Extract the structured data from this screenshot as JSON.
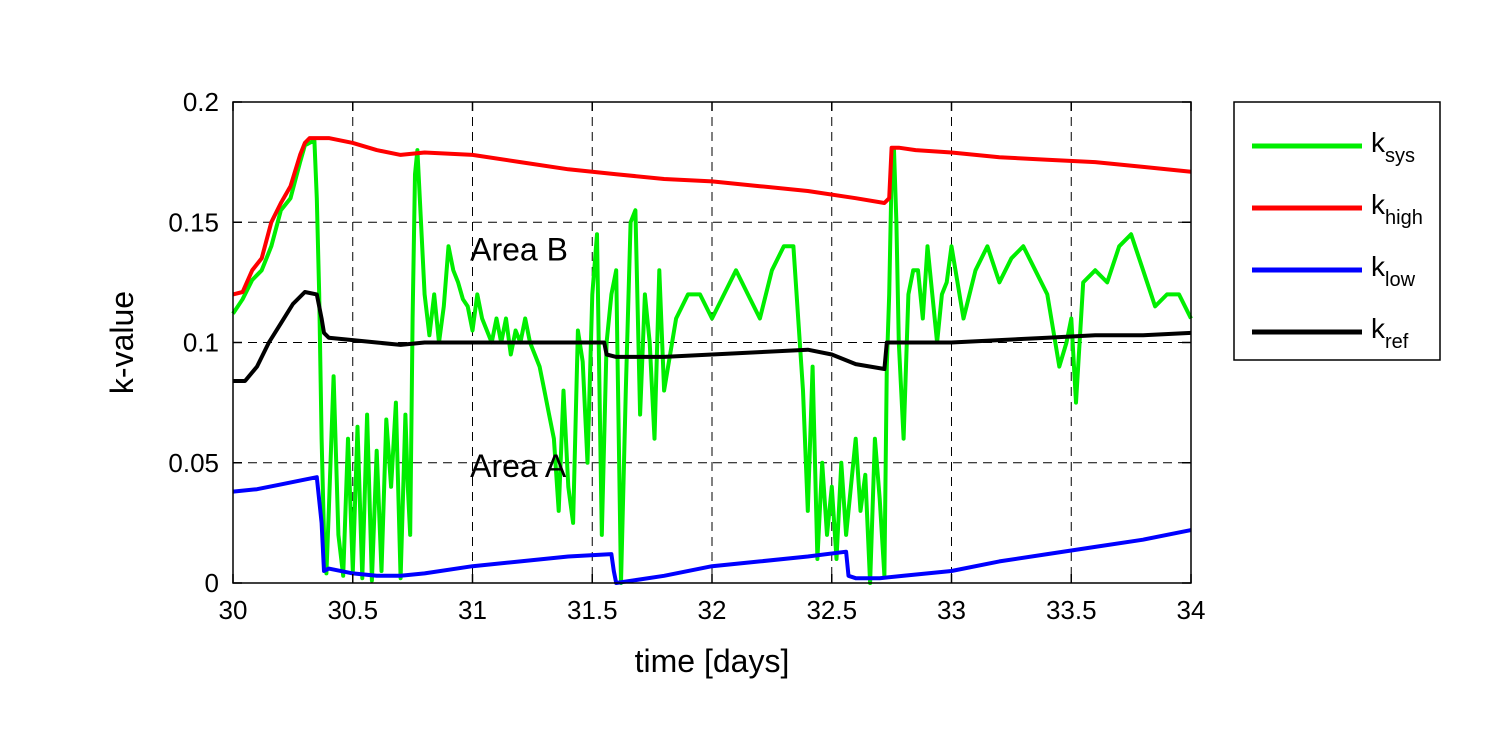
{
  "chart_data": {
    "type": "line",
    "title": "",
    "xlabel": "time [days]",
    "ylabel": "k-value",
    "xlim": [
      30,
      34
    ],
    "ylim": [
      0,
      0.2
    ],
    "xticks": [
      30,
      30.5,
      31,
      31.5,
      32,
      32.5,
      33,
      33.5,
      34
    ],
    "xtick_labels": [
      "30",
      "30.5",
      "31",
      "31.5",
      "32",
      "32.5",
      "33",
      "33.5",
      "34"
    ],
    "yticks": [
      0,
      0.05,
      0.1,
      0.15,
      0.2
    ],
    "ytick_labels": [
      "0",
      "0.05",
      "0.1",
      "0.15",
      "0.2"
    ],
    "grid": true,
    "legend_position": "outside-right",
    "annotations": [
      {
        "text": "Area B",
        "x": 30.99,
        "y": 0.139
      },
      {
        "text": "Area A",
        "x": 30.99,
        "y": 0.049
      }
    ],
    "series": [
      {
        "name": "k",
        "sub": "sys",
        "color": "#00ee00",
        "x": [
          30.0,
          30.04,
          30.08,
          30.12,
          30.16,
          30.2,
          30.24,
          30.28,
          30.3,
          30.32,
          30.34,
          30.35,
          30.36,
          30.37,
          30.38,
          30.39,
          30.4,
          30.42,
          30.44,
          30.46,
          30.48,
          30.5,
          30.52,
          30.54,
          30.56,
          30.58,
          30.6,
          30.62,
          30.64,
          30.66,
          30.68,
          30.7,
          30.72,
          30.73,
          30.74,
          30.75,
          30.76,
          30.77,
          30.78,
          30.8,
          30.82,
          30.84,
          30.86,
          30.88,
          30.9,
          30.92,
          30.94,
          30.96,
          30.98,
          31.0,
          31.02,
          31.04,
          31.06,
          31.08,
          31.1,
          31.12,
          31.14,
          31.16,
          31.18,
          31.2,
          31.22,
          31.24,
          31.26,
          31.28,
          31.3,
          31.32,
          31.34,
          31.36,
          31.38,
          31.4,
          31.42,
          31.44,
          31.46,
          31.48,
          31.5,
          31.52,
          31.54,
          31.56,
          31.58,
          31.6,
          31.62,
          31.64,
          31.66,
          31.68,
          31.7,
          31.72,
          31.74,
          31.76,
          31.78,
          31.8,
          31.85,
          31.9,
          31.95,
          32.0,
          32.05,
          32.1,
          32.15,
          32.2,
          32.25,
          32.3,
          32.34,
          32.36,
          32.38,
          32.4,
          32.42,
          32.44,
          32.46,
          32.48,
          32.5,
          32.52,
          32.54,
          32.56,
          32.58,
          32.6,
          32.62,
          32.64,
          32.66,
          32.68,
          32.7,
          32.72,
          32.73,
          32.74,
          32.75,
          32.76,
          32.77,
          32.78,
          32.8,
          32.82,
          32.84,
          32.86,
          32.88,
          32.9,
          32.92,
          32.94,
          32.96,
          32.98,
          33.0,
          33.05,
          33.1,
          33.15,
          33.2,
          33.25,
          33.3,
          33.35,
          33.4,
          33.45,
          33.48,
          33.5,
          33.52,
          33.55,
          33.6,
          33.65,
          33.7,
          33.75,
          33.8,
          33.85,
          33.9,
          33.95,
          34.0
        ],
        "y": [
          0.112,
          0.118,
          0.126,
          0.13,
          0.14,
          0.155,
          0.16,
          0.175,
          0.182,
          0.183,
          0.184,
          0.16,
          0.12,
          0.06,
          0.02,
          0.004,
          0.03,
          0.086,
          0.02,
          0.003,
          0.06,
          0.005,
          0.065,
          0.002,
          0.07,
          0.001,
          0.055,
          0.005,
          0.068,
          0.04,
          0.075,
          0.002,
          0.07,
          0.04,
          0.02,
          0.11,
          0.17,
          0.18,
          0.16,
          0.12,
          0.103,
          0.12,
          0.1,
          0.115,
          0.14,
          0.13,
          0.125,
          0.118,
          0.115,
          0.105,
          0.12,
          0.11,
          0.105,
          0.1,
          0.11,
          0.1,
          0.11,
          0.095,
          0.105,
          0.1,
          0.11,
          0.1,
          0.095,
          0.09,
          0.08,
          0.07,
          0.06,
          0.03,
          0.08,
          0.04,
          0.025,
          0.105,
          0.092,
          0.05,
          0.12,
          0.145,
          0.02,
          0.1,
          0.12,
          0.13,
          0.0,
          0.08,
          0.15,
          0.155,
          0.07,
          0.12,
          0.1,
          0.06,
          0.13,
          0.08,
          0.11,
          0.12,
          0.12,
          0.11,
          0.12,
          0.13,
          0.12,
          0.11,
          0.13,
          0.14,
          0.14,
          0.11,
          0.08,
          0.03,
          0.09,
          0.01,
          0.05,
          0.02,
          0.04,
          0.01,
          0.05,
          0.02,
          0.04,
          0.06,
          0.03,
          0.045,
          0.0,
          0.06,
          0.035,
          0.003,
          0.09,
          0.12,
          0.17,
          0.18,
          0.15,
          0.1,
          0.06,
          0.12,
          0.13,
          0.13,
          0.11,
          0.14,
          0.12,
          0.1,
          0.12,
          0.125,
          0.14,
          0.11,
          0.13,
          0.14,
          0.125,
          0.135,
          0.14,
          0.13,
          0.12,
          0.09,
          0.1,
          0.11,
          0.075,
          0.125,
          0.13,
          0.125,
          0.14,
          0.145,
          0.13,
          0.115,
          0.12,
          0.12,
          0.11
        ]
      },
      {
        "name": "k",
        "sub": "high",
        "color": "#ff0000",
        "x": [
          30.0,
          30.04,
          30.08,
          30.12,
          30.16,
          30.2,
          30.24,
          30.28,
          30.3,
          30.32,
          30.34,
          30.4,
          30.5,
          30.6,
          30.7,
          30.8,
          31.0,
          31.2,
          31.4,
          31.6,
          31.8,
          32.0,
          32.2,
          32.4,
          32.6,
          32.72,
          32.74,
          32.75,
          32.78,
          32.85,
          33.0,
          33.2,
          33.4,
          33.6,
          33.8,
          34.0
        ],
        "y": [
          0.12,
          0.121,
          0.13,
          0.135,
          0.15,
          0.158,
          0.165,
          0.178,
          0.183,
          0.185,
          0.185,
          0.185,
          0.183,
          0.18,
          0.178,
          0.179,
          0.178,
          0.175,
          0.172,
          0.17,
          0.168,
          0.167,
          0.165,
          0.163,
          0.16,
          0.158,
          0.16,
          0.181,
          0.181,
          0.18,
          0.179,
          0.177,
          0.176,
          0.175,
          0.173,
          0.171
        ]
      },
      {
        "name": "k",
        "sub": "low",
        "color": "#0000ff",
        "x": [
          30.0,
          30.1,
          30.2,
          30.3,
          30.35,
          30.37,
          30.38,
          30.4,
          30.5,
          30.6,
          30.7,
          30.8,
          31.0,
          31.2,
          31.4,
          31.58,
          31.59,
          31.6,
          31.8,
          32.0,
          32.2,
          32.4,
          32.56,
          32.57,
          32.6,
          32.7,
          32.8,
          33.0,
          33.2,
          33.4,
          33.6,
          33.8,
          34.0
        ],
        "y": [
          0.038,
          0.039,
          0.041,
          0.043,
          0.044,
          0.025,
          0.005,
          0.006,
          0.004,
          0.003,
          0.003,
          0.004,
          0.007,
          0.009,
          0.011,
          0.012,
          0.005,
          0.0,
          0.003,
          0.007,
          0.009,
          0.011,
          0.013,
          0.003,
          0.002,
          0.002,
          0.003,
          0.005,
          0.009,
          0.012,
          0.015,
          0.018,
          0.022
        ]
      },
      {
        "name": "k",
        "sub": "ref",
        "color": "#000000",
        "x": [
          30.0,
          30.05,
          30.1,
          30.15,
          30.2,
          30.25,
          30.3,
          30.35,
          30.37,
          30.38,
          30.4,
          30.5,
          30.6,
          30.7,
          30.8,
          31.0,
          31.2,
          31.4,
          31.55,
          31.56,
          31.6,
          31.8,
          32.0,
          32.2,
          32.4,
          32.5,
          32.6,
          32.72,
          32.73,
          32.75,
          32.8,
          33.0,
          33.2,
          33.4,
          33.6,
          33.8,
          34.0
        ],
        "y": [
          0.084,
          0.084,
          0.09,
          0.1,
          0.108,
          0.116,
          0.121,
          0.12,
          0.11,
          0.104,
          0.102,
          0.101,
          0.1,
          0.099,
          0.1,
          0.1,
          0.1,
          0.1,
          0.1,
          0.095,
          0.094,
          0.094,
          0.095,
          0.096,
          0.097,
          0.095,
          0.091,
          0.089,
          0.1,
          0.1,
          0.1,
          0.1,
          0.101,
          0.102,
          0.103,
          0.103,
          0.104
        ]
      }
    ]
  }
}
